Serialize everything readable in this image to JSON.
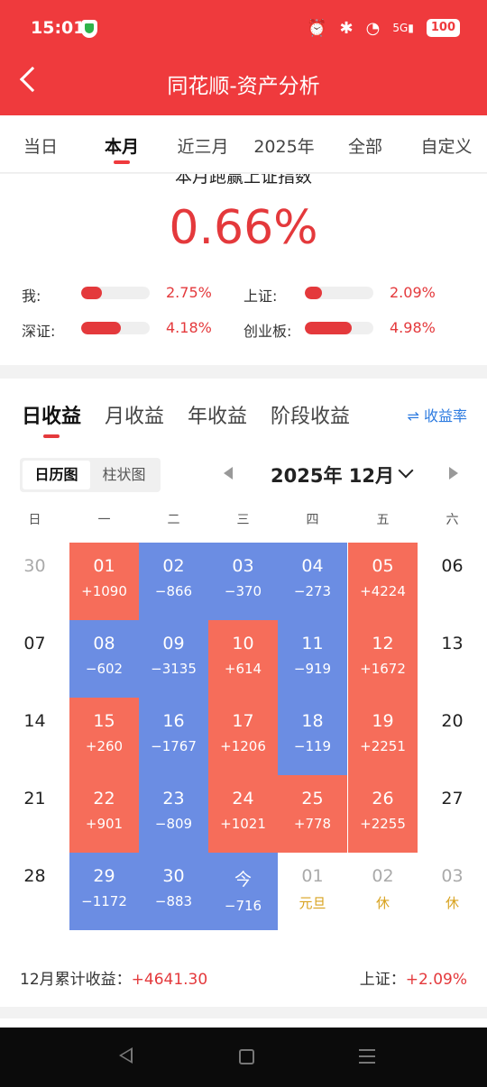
{
  "status_bar": {
    "time": "15:01",
    "battery": "100",
    "network": "5G"
  },
  "header": {
    "title": "同花顺-资产分析"
  },
  "tabs": [
    "当日",
    "本月",
    "近三月",
    "2025年",
    "全部",
    "自定义"
  ],
  "active_tab": 1,
  "summary": {
    "heading": "本月跑赢上证指数",
    "value": "0.66%",
    "items": [
      {
        "label": "我:",
        "percent": "2.75%",
        "level": 0.3
      },
      {
        "label": "上证:",
        "percent": "2.09%",
        "level": 0.25
      },
      {
        "label": "深证:",
        "percent": "4.18%",
        "level": 0.58
      },
      {
        "label": "创业板:",
        "percent": "4.98%",
        "level": 0.68
      }
    ]
  },
  "returns_tabs": [
    "日收益",
    "月收益",
    "年收益",
    "阶段收益"
  ],
  "rate_toggle": "收益率",
  "view_toggle": [
    "日历图",
    "柱状图"
  ],
  "month_label": "2025年 12月",
  "weekdays": [
    "日",
    "一",
    "二",
    "三",
    "四",
    "五",
    "六"
  ],
  "calendar": [
    [
      {
        "day": "30",
        "value": "",
        "kind": "gray"
      },
      {
        "day": "01",
        "value": "+1090",
        "kind": "red"
      },
      {
        "day": "02",
        "value": "−866",
        "kind": "blue"
      },
      {
        "day": "03",
        "value": "−370",
        "kind": "blue"
      },
      {
        "day": "04",
        "value": "−273",
        "kind": "blue"
      },
      {
        "day": "05",
        "value": "+4224",
        "kind": "red"
      },
      {
        "day": "06",
        "value": "",
        "kind": "plain"
      }
    ],
    [
      {
        "day": "07",
        "value": "",
        "kind": "plain"
      },
      {
        "day": "08",
        "value": "−602",
        "kind": "blue"
      },
      {
        "day": "09",
        "value": "−3135",
        "kind": "blue"
      },
      {
        "day": "10",
        "value": "+614",
        "kind": "red"
      },
      {
        "day": "11",
        "value": "−919",
        "kind": "blue"
      },
      {
        "day": "12",
        "value": "+1672",
        "kind": "red"
      },
      {
        "day": "13",
        "value": "",
        "kind": "plain"
      }
    ],
    [
      {
        "day": "14",
        "value": "",
        "kind": "plain"
      },
      {
        "day": "15",
        "value": "+260",
        "kind": "red"
      },
      {
        "day": "16",
        "value": "−1767",
        "kind": "blue"
      },
      {
        "day": "17",
        "value": "+1206",
        "kind": "red"
      },
      {
        "day": "18",
        "value": "−119",
        "kind": "blue"
      },
      {
        "day": "19",
        "value": "+2251",
        "kind": "red"
      },
      {
        "day": "20",
        "value": "",
        "kind": "plain"
      }
    ],
    [
      {
        "day": "21",
        "value": "",
        "kind": "plain"
      },
      {
        "day": "22",
        "value": "+901",
        "kind": "red"
      },
      {
        "day": "23",
        "value": "−809",
        "kind": "blue"
      },
      {
        "day": "24",
        "value": "+1021",
        "kind": "red"
      },
      {
        "day": "25",
        "value": "+778",
        "kind": "red"
      },
      {
        "day": "26",
        "value": "+2255",
        "kind": "red"
      },
      {
        "day": "27",
        "value": "",
        "kind": "plain"
      }
    ],
    [
      {
        "day": "28",
        "value": "",
        "kind": "plain"
      },
      {
        "day": "29",
        "value": "−1172",
        "kind": "blue"
      },
      {
        "day": "30",
        "value": "−883",
        "kind": "blue"
      },
      {
        "day": "今",
        "value": "−716",
        "kind": "blue"
      },
      {
        "day": "01",
        "value": "元旦",
        "kind": "gray-hol"
      },
      {
        "day": "02",
        "value": "休",
        "kind": "gray-hol"
      },
      {
        "day": "03",
        "value": "休",
        "kind": "gray-hol"
      }
    ]
  ],
  "footer": {
    "month_total_label": "12月累计收益：",
    "month_total_value": "+4641.30",
    "index_label": "上证：",
    "index_value": "+2.09%"
  },
  "colors": {
    "brand": "#ef3a3d",
    "gain": "#f66d5a",
    "loss": "#6b8de3",
    "accent": "#2d7be0"
  }
}
